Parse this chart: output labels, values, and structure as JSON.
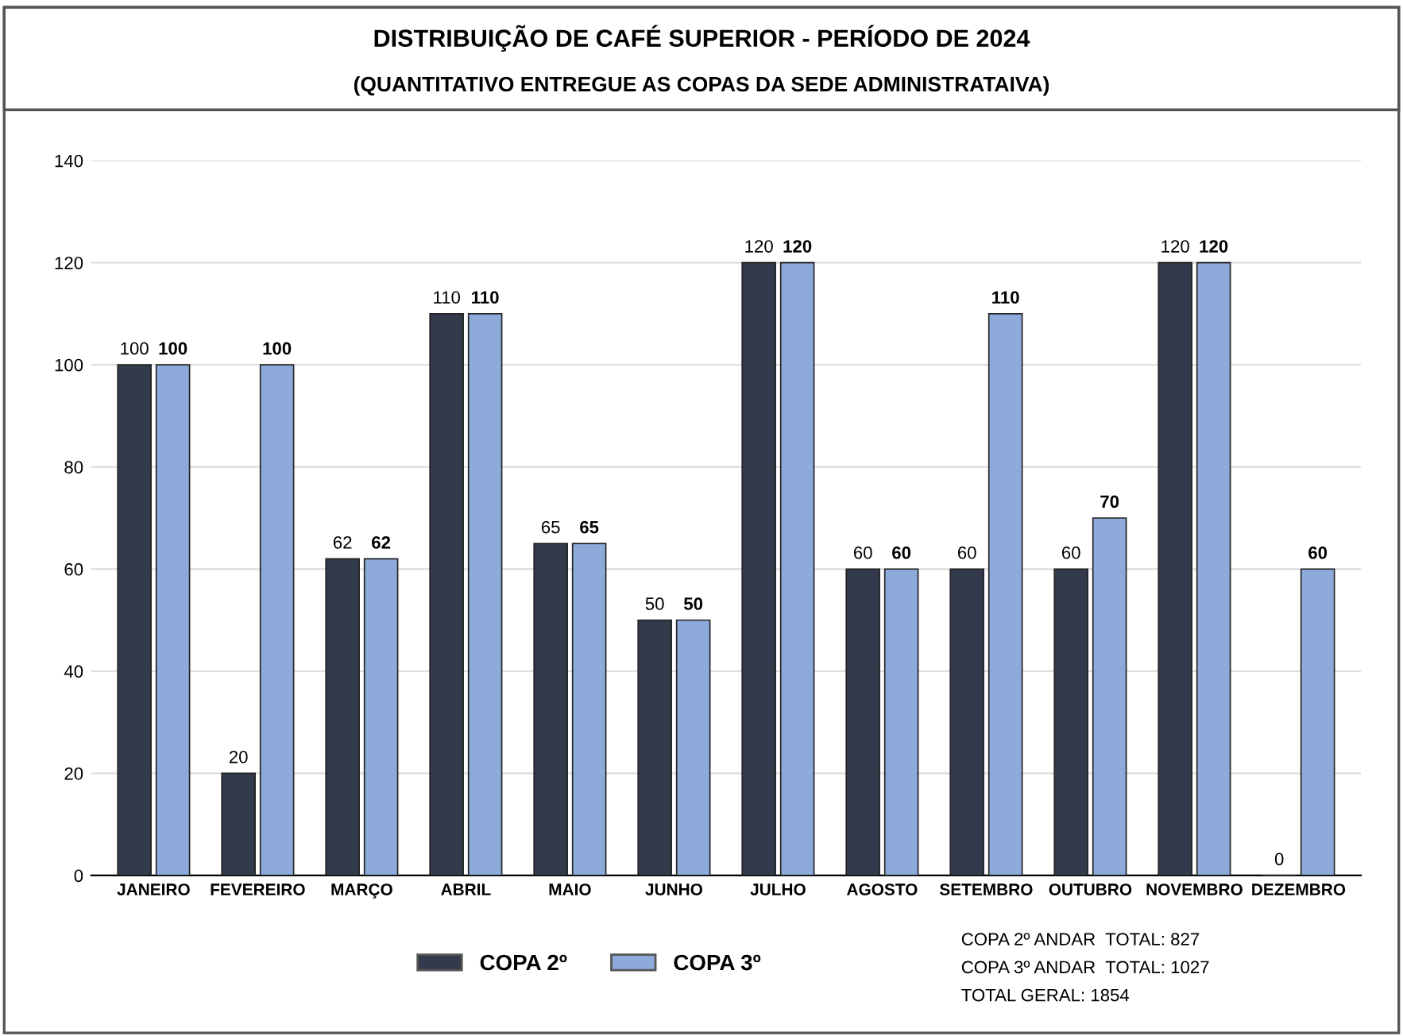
{
  "chart_data": {
    "type": "bar",
    "title": "DISTRIBUIÇÃO DE CAFÉ SUPERIOR - PERÍODO DE 2024",
    "subtitle": "(QUANTITATIVO ENTREGUE AS COPAS DA SEDE ADMINISTRATAIVA)",
    "categories": [
      "JANEIRO",
      "FEVEREIRO",
      "MARÇO",
      "ABRIL",
      "MAIO",
      "JUNHO",
      "JULHO",
      "AGOSTO",
      "SETEMBRO",
      "OUTUBRO",
      "NOVEMBRO",
      "DEZEMBRO"
    ],
    "series": [
      {
        "name": "COPA 2º",
        "color": "#323a4b",
        "values": [
          100,
          20,
          62,
          110,
          65,
          50,
          120,
          60,
          60,
          60,
          120,
          0
        ]
      },
      {
        "name": "COPA 3º",
        "color": "#8eaadb",
        "values": [
          100,
          100,
          62,
          110,
          65,
          50,
          120,
          60,
          110,
          70,
          120,
          60
        ]
      }
    ],
    "ylim": [
      0,
      140
    ],
    "yticks": [
      0,
      20,
      40,
      60,
      80,
      100,
      120,
      140
    ],
    "grid": "y",
    "legend": "bottom",
    "data_labels": true,
    "annotations": [
      "COPA 2º ANDAR  TOTAL: 827",
      "COPA 3º ANDAR  TOTAL: 1027",
      "TOTAL GERAL: 1854"
    ]
  }
}
